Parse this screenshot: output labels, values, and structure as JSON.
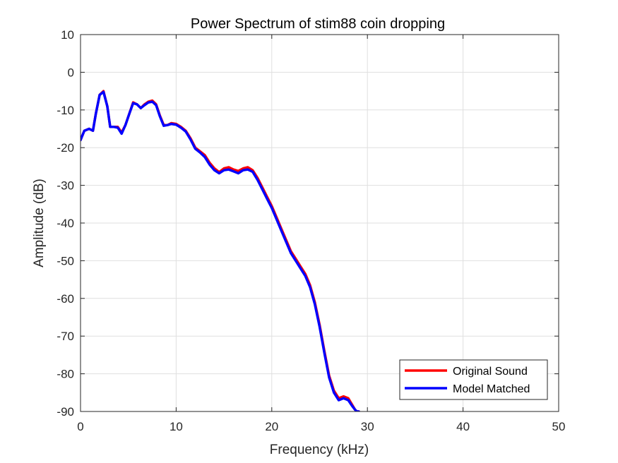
{
  "chart_data": {
    "type": "line",
    "title": "Power Spectrum of stim88 coin dropping",
    "xlabel": "Frequency (kHz)",
    "ylabel": "Amplitude (dB)",
    "xlim": [
      0,
      50
    ],
    "ylim": [
      -90,
      10
    ],
    "xticks": [
      0,
      10,
      20,
      30,
      40,
      50
    ],
    "yticks": [
      10,
      0,
      -10,
      -20,
      -30,
      -40,
      -50,
      -60,
      -70,
      -80,
      -90
    ],
    "xtick_labels": [
      "0",
      "10",
      "20",
      "30",
      "40",
      "50"
    ],
    "ytick_labels": [
      "10",
      "0",
      "-10",
      "-20",
      "-30",
      "-40",
      "-50",
      "-60",
      "-70",
      "-80",
      "-90"
    ],
    "grid": true,
    "legend_position": "bottom-right",
    "series": [
      {
        "name": "Original Sound",
        "color": "#ff0000",
        "x": [
          0,
          0.4,
          0.9,
          1.3,
          1.6,
          2.0,
          2.4,
          2.8,
          3.1,
          3.5,
          3.9,
          4.3,
          4.7,
          5.1,
          5.5,
          5.9,
          6.3,
          6.7,
          7.1,
          7.5,
          7.9,
          8.3,
          8.7,
          9.1,
          9.5,
          10.0,
          10.5,
          11.0,
          11.5,
          12.0,
          12.5,
          13.0,
          13.5,
          14.0,
          14.5,
          15.0,
          15.5,
          16.0,
          16.5,
          17.0,
          17.5,
          18.0,
          18.5,
          19.0,
          19.5,
          20.0,
          20.5,
          21.0,
          21.5,
          22.0,
          22.5,
          23.0,
          23.5,
          24.0,
          24.5,
          25.0,
          25.5,
          26.0,
          26.5,
          27.0,
          27.5,
          28.0,
          28.4,
          28.7,
          28.9,
          29.1
        ],
        "y": [
          -18,
          -15.5,
          -15,
          -15.5,
          -11,
          -6,
          -5,
          -9,
          -14.5,
          -14.5,
          -14.5,
          -16,
          -14,
          -11,
          -8,
          -8.5,
          -9.5,
          -8.5,
          -7.8,
          -7.5,
          -8.5,
          -11.5,
          -14,
          -14,
          -13.5,
          -13.7,
          -14.5,
          -15.5,
          -17.5,
          -20,
          -21,
          -22,
          -24,
          -25.5,
          -26.5,
          -25.5,
          -25.2,
          -25.8,
          -26.2,
          -25.5,
          -25.2,
          -26,
          -28,
          -30.5,
          -33,
          -35.5,
          -38.5,
          -41.5,
          -44.5,
          -47.5,
          -49.5,
          -51.5,
          -53.5,
          -56.5,
          -61,
          -67,
          -74,
          -80.5,
          -84.5,
          -86.5,
          -86,
          -86.5,
          -88.2,
          -89.5,
          -90,
          -90
        ]
      },
      {
        "name": "Model Matched",
        "color": "#0000ff",
        "x": [
          0,
          0.4,
          0.9,
          1.3,
          1.6,
          2.0,
          2.4,
          2.8,
          3.1,
          3.5,
          3.9,
          4.3,
          4.7,
          5.1,
          5.5,
          5.9,
          6.3,
          6.7,
          7.1,
          7.5,
          7.9,
          8.3,
          8.7,
          9.1,
          9.5,
          10.0,
          10.5,
          11.0,
          11.5,
          12.0,
          12.5,
          13.0,
          13.5,
          14.0,
          14.5,
          15.0,
          15.5,
          16.0,
          16.5,
          17.0,
          17.5,
          18.0,
          18.5,
          19.0,
          19.5,
          20.0,
          20.5,
          21.0,
          21.5,
          22.0,
          22.5,
          23.0,
          23.5,
          24.0,
          24.5,
          25.0,
          25.5,
          26.0,
          26.5,
          27.0,
          27.5,
          28.0,
          28.4,
          28.7,
          28.9,
          29.1
        ],
        "y": [
          -18,
          -15.5,
          -15,
          -15.5,
          -11,
          -6,
          -5.2,
          -9,
          -14.5,
          -14.5,
          -14.7,
          -16.3,
          -14,
          -11,
          -8.2,
          -8.5,
          -9.5,
          -8.7,
          -8.0,
          -7.8,
          -8.7,
          -11.7,
          -14.2,
          -14,
          -13.7,
          -13.9,
          -14.7,
          -15.7,
          -17.8,
          -20.3,
          -21.3,
          -22.5,
          -24.5,
          -26,
          -26.8,
          -26,
          -25.8,
          -26.3,
          -26.8,
          -26,
          -25.8,
          -26.4,
          -28.5,
          -31,
          -33.5,
          -36,
          -39,
          -42,
          -45,
          -48,
          -50,
          -52,
          -54,
          -57,
          -61.5,
          -67.5,
          -74.5,
          -81,
          -85,
          -87,
          -86.5,
          -87,
          -88.5,
          -89.5,
          -90,
          -90
        ]
      }
    ]
  }
}
